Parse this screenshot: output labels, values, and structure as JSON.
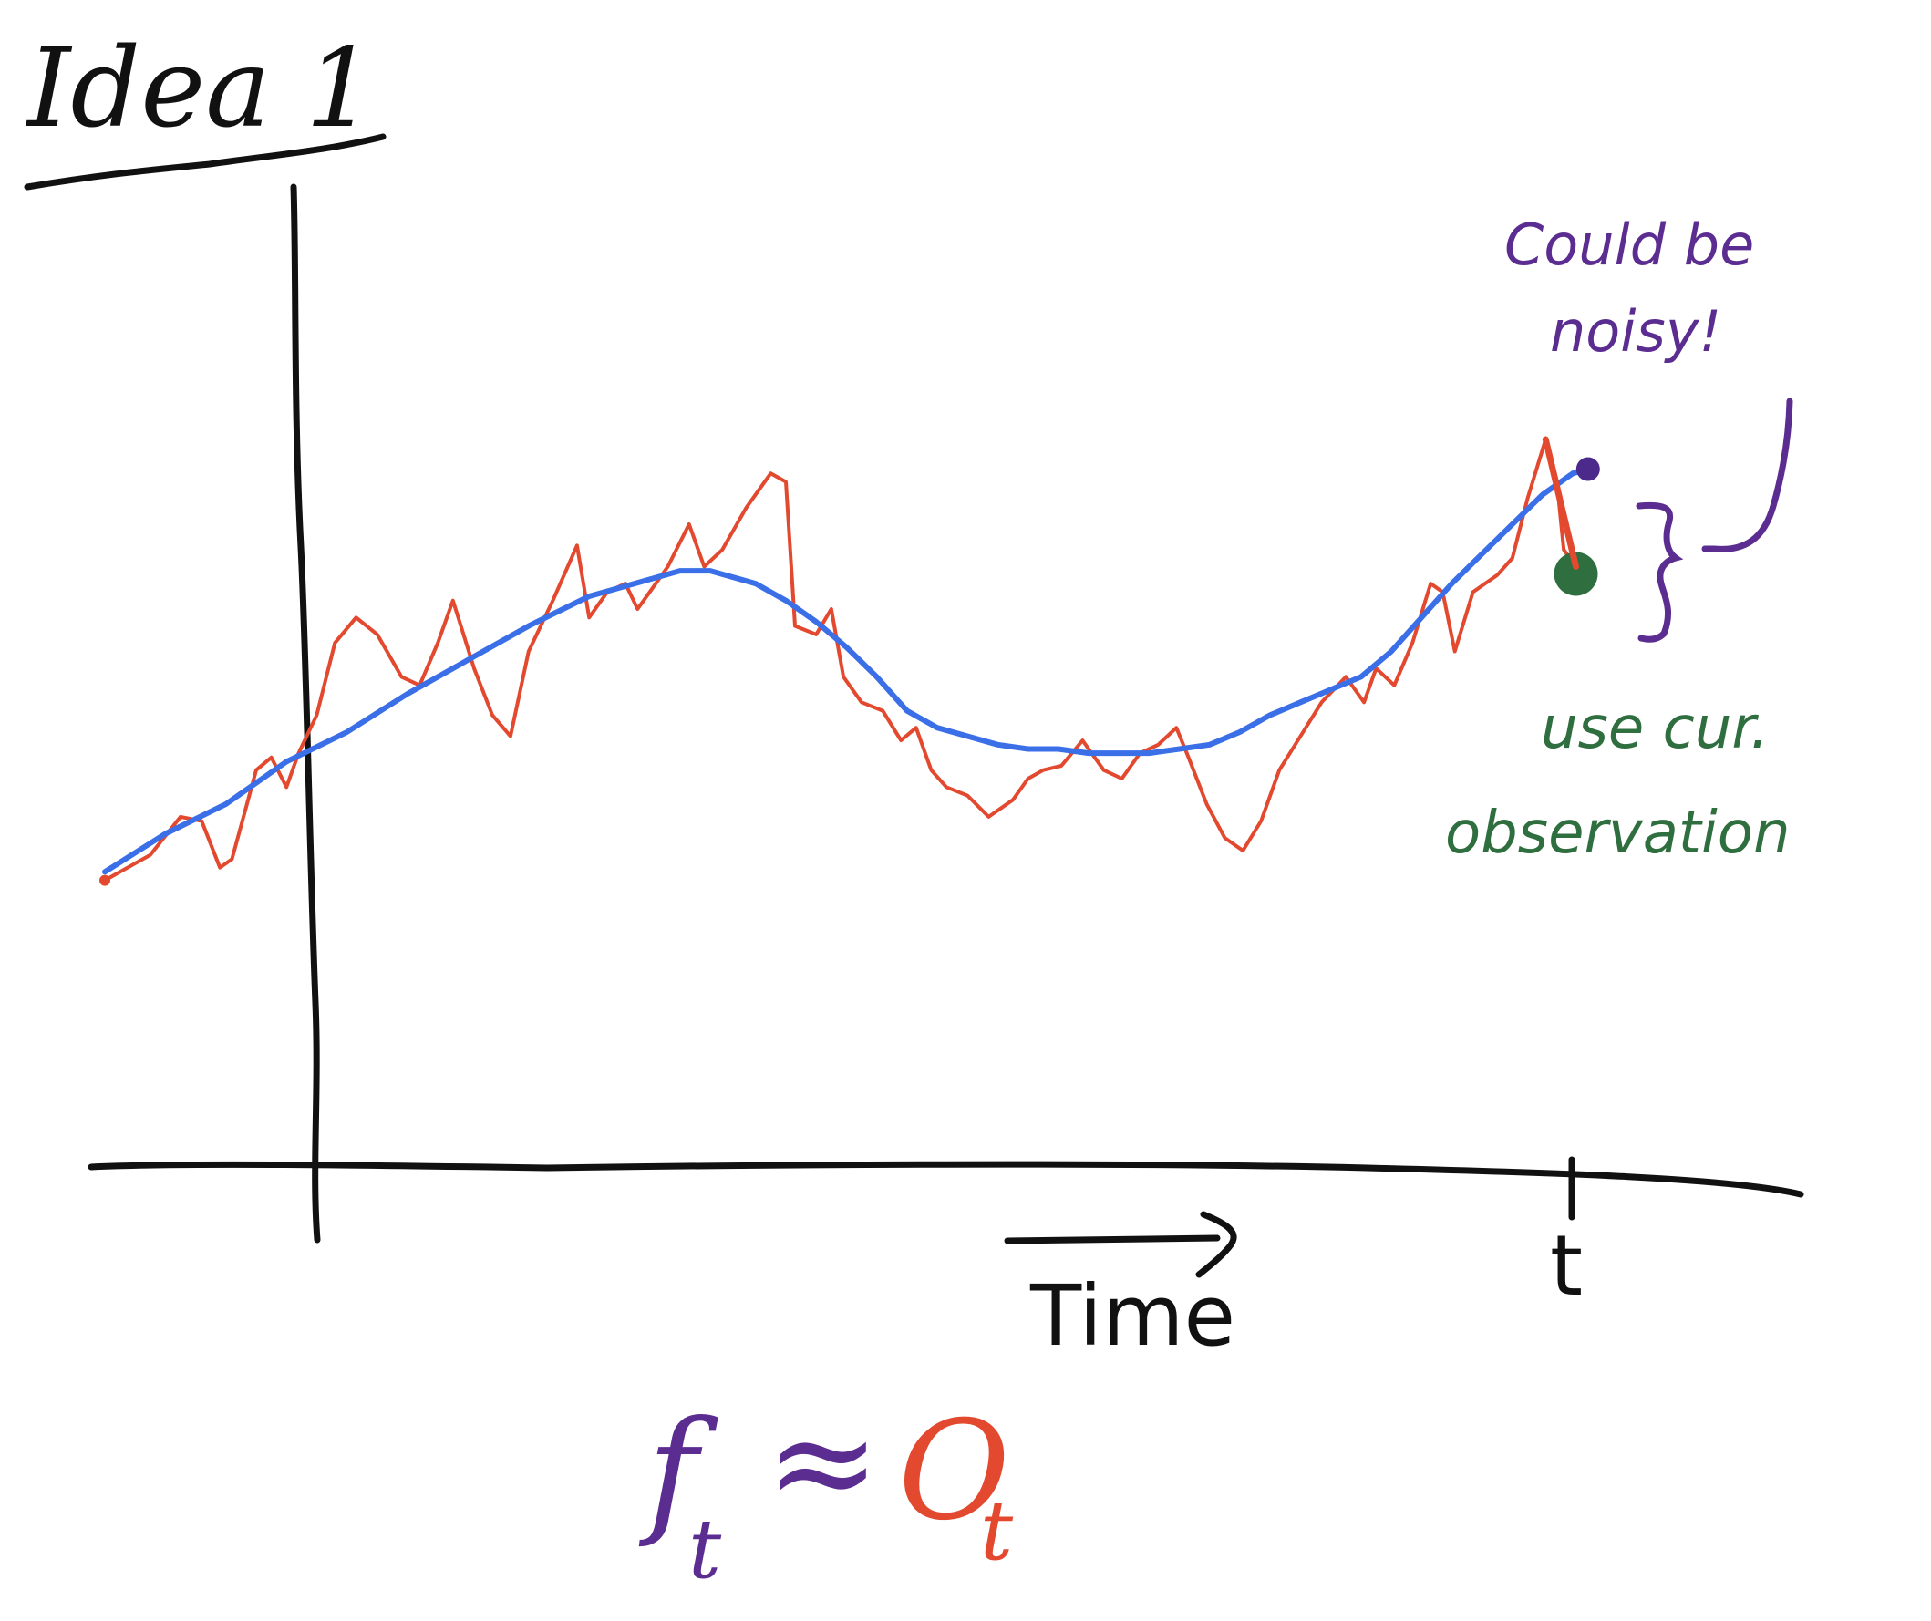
{
  "title": "Idea 1",
  "annotations": {
    "noisy_line1": "Could be",
    "noisy_line2": "noisy!",
    "use_line1": "use cur.",
    "use_line2": "observation"
  },
  "x_axis": {
    "label": "Time",
    "tick_label": "t"
  },
  "equation": {
    "f": "f",
    "f_sub": "t",
    "approx": "≈",
    "o": "O",
    "o_sub": "t"
  },
  "colors": {
    "ink": "#111111",
    "observed": "#e2492f",
    "smoothed": "#3a6fe8",
    "forecast_point": "#4b2a8c",
    "annotation_purple": "#5b2d91",
    "current_obs": "#2f6e3f"
  },
  "chart_data": {
    "type": "line",
    "title": "Idea 1",
    "xlabel": "Time",
    "ylabel": "",
    "series": [
      {
        "name": "",
        "role": "observed",
        "values": [
          [
            0,
            0.16
          ],
          [
            1.5,
            0.22
          ],
          [
            2.5,
            0.31
          ],
          [
            3.2,
            0.3
          ],
          [
            3.8,
            0.19
          ],
          [
            4.2,
            0.21
          ],
          [
            5.0,
            0.42
          ],
          [
            5.5,
            0.45
          ],
          [
            6.0,
            0.38
          ],
          [
            6.4,
            0.46
          ],
          [
            7.0,
            0.55
          ],
          [
            7.6,
            0.72
          ],
          [
            8.3,
            0.78
          ],
          [
            9.0,
            0.74
          ],
          [
            9.8,
            0.64
          ],
          [
            10.4,
            0.62
          ],
          [
            11.0,
            0.72
          ],
          [
            11.5,
            0.82
          ],
          [
            12.2,
            0.66
          ],
          [
            12.8,
            0.55
          ],
          [
            13.4,
            0.5
          ],
          [
            14.0,
            0.7
          ],
          [
            14.8,
            0.82
          ],
          [
            15.6,
            0.95
          ],
          [
            16.0,
            0.78
          ],
          [
            16.6,
            0.84
          ],
          [
            17.2,
            0.86
          ],
          [
            17.6,
            0.8
          ],
          [
            18.0,
            0.84
          ],
          [
            18.6,
            0.9
          ],
          [
            19.3,
            1.0
          ],
          [
            19.8,
            0.9
          ],
          [
            20.4,
            0.94
          ],
          [
            21.2,
            1.04
          ],
          [
            22.0,
            1.12
          ],
          [
            22.5,
            1.1
          ],
          [
            22.8,
            0.76
          ],
          [
            23.5,
            0.74
          ],
          [
            24.0,
            0.8
          ],
          [
            24.4,
            0.64
          ],
          [
            25.0,
            0.58
          ],
          [
            25.7,
            0.56
          ],
          [
            26.3,
            0.49
          ],
          [
            26.8,
            0.52
          ],
          [
            27.3,
            0.42
          ],
          [
            27.8,
            0.38
          ],
          [
            28.5,
            0.36
          ],
          [
            29.2,
            0.31
          ],
          [
            30.0,
            0.35
          ],
          [
            30.5,
            0.4
          ],
          [
            31.0,
            0.42
          ],
          [
            31.6,
            0.43
          ],
          [
            32.3,
            0.49
          ],
          [
            33.0,
            0.42
          ],
          [
            33.6,
            0.4
          ],
          [
            34.2,
            0.46
          ],
          [
            34.8,
            0.48
          ],
          [
            35.4,
            0.52
          ],
          [
            35.8,
            0.45
          ],
          [
            36.4,
            0.34
          ],
          [
            37.0,
            0.26
          ],
          [
            37.6,
            0.23
          ],
          [
            38.2,
            0.3
          ],
          [
            38.8,
            0.42
          ],
          [
            39.5,
            0.5
          ],
          [
            40.2,
            0.58
          ],
          [
            41.0,
            0.64
          ],
          [
            41.6,
            0.58
          ],
          [
            42.0,
            0.66
          ],
          [
            42.6,
            0.62
          ],
          [
            43.2,
            0.72
          ],
          [
            43.8,
            0.86
          ],
          [
            44.2,
            0.84
          ],
          [
            44.6,
            0.7
          ],
          [
            45.2,
            0.84
          ],
          [
            46.0,
            0.88
          ],
          [
            46.5,
            0.92
          ],
          [
            47.0,
            1.06
          ],
          [
            47.6,
            1.2
          ],
          [
            48.0,
            1.08
          ],
          [
            48.2,
            0.94
          ],
          [
            48.6,
            0.9
          ]
        ]
      },
      {
        "name": "",
        "role": "smoothed",
        "values": [
          [
            0,
            0.18
          ],
          [
            2.0,
            0.27
          ],
          [
            4.0,
            0.34
          ],
          [
            6.0,
            0.44
          ],
          [
            8.0,
            0.51
          ],
          [
            10.0,
            0.6
          ],
          [
            12.0,
            0.68
          ],
          [
            14.0,
            0.76
          ],
          [
            16.0,
            0.83
          ],
          [
            17.5,
            0.86
          ],
          [
            19.0,
            0.89
          ],
          [
            20.0,
            0.89
          ],
          [
            21.5,
            0.86
          ],
          [
            22.5,
            0.82
          ],
          [
            23.5,
            0.77
          ],
          [
            24.5,
            0.71
          ],
          [
            25.5,
            0.64
          ],
          [
            26.5,
            0.56
          ],
          [
            27.5,
            0.52
          ],
          [
            28.5,
            0.5
          ],
          [
            29.5,
            0.48
          ],
          [
            30.5,
            0.47
          ],
          [
            31.5,
            0.47
          ],
          [
            32.5,
            0.46
          ],
          [
            33.5,
            0.46
          ],
          [
            34.5,
            0.46
          ],
          [
            35.5,
            0.47
          ],
          [
            36.5,
            0.48
          ],
          [
            37.5,
            0.51
          ],
          [
            38.5,
            0.55
          ],
          [
            39.5,
            0.58
          ],
          [
            40.5,
            0.61
          ],
          [
            41.5,
            0.64
          ],
          [
            42.5,
            0.7
          ],
          [
            43.5,
            0.78
          ],
          [
            44.5,
            0.86
          ],
          [
            45.5,
            0.93
          ],
          [
            46.5,
            1.0
          ],
          [
            47.5,
            1.07
          ],
          [
            48.5,
            1.12
          ],
          [
            49.0,
            1.13
          ]
        ]
      }
    ],
    "forecast_point": [
      49.0,
      1.13
    ],
    "current_observation": [
      48.6,
      0.9
    ],
    "annotations": [
      "Could be noisy!",
      "use cur. observation"
    ],
    "grid": false
  }
}
